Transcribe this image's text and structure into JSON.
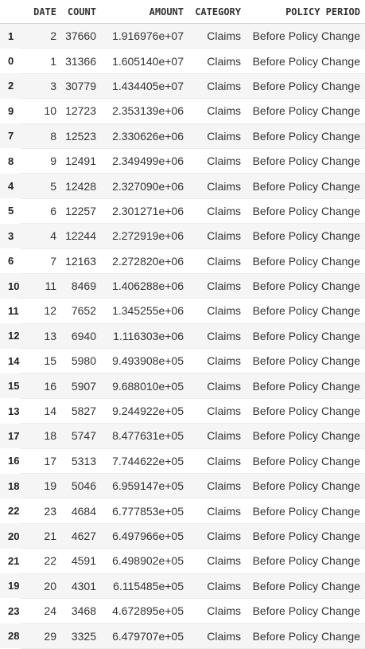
{
  "table": {
    "columns": [
      "",
      "DATE",
      "COUNT",
      "AMOUNT",
      "CATEGORY",
      "POLICY PERIOD"
    ],
    "rows": [
      [
        "1",
        "2",
        "37660",
        "1.916976e+07",
        "Claims",
        "Before Policy Change"
      ],
      [
        "0",
        "1",
        "31366",
        "1.605140e+07",
        "Claims",
        "Before Policy Change"
      ],
      [
        "2",
        "3",
        "30779",
        "1.434405e+07",
        "Claims",
        "Before Policy Change"
      ],
      [
        "9",
        "10",
        "12723",
        "2.353139e+06",
        "Claims",
        "Before Policy Change"
      ],
      [
        "7",
        "8",
        "12523",
        "2.330626e+06",
        "Claims",
        "Before Policy Change"
      ],
      [
        "8",
        "9",
        "12491",
        "2.349499e+06",
        "Claims",
        "Before Policy Change"
      ],
      [
        "4",
        "5",
        "12428",
        "2.327090e+06",
        "Claims",
        "Before Policy Change"
      ],
      [
        "5",
        "6",
        "12257",
        "2.301271e+06",
        "Claims",
        "Before Policy Change"
      ],
      [
        "3",
        "4",
        "12244",
        "2.272919e+06",
        "Claims",
        "Before Policy Change"
      ],
      [
        "6",
        "7",
        "12163",
        "2.272820e+06",
        "Claims",
        "Before Policy Change"
      ],
      [
        "10",
        "11",
        "8469",
        "1.406288e+06",
        "Claims",
        "Before Policy Change"
      ],
      [
        "11",
        "12",
        "7652",
        "1.345255e+06",
        "Claims",
        "Before Policy Change"
      ],
      [
        "12",
        "13",
        "6940",
        "1.116303e+06",
        "Claims",
        "Before Policy Change"
      ],
      [
        "14",
        "15",
        "5980",
        "9.493908e+05",
        "Claims",
        "Before Policy Change"
      ],
      [
        "15",
        "16",
        "5907",
        "9.688010e+05",
        "Claims",
        "Before Policy Change"
      ],
      [
        "13",
        "14",
        "5827",
        "9.244922e+05",
        "Claims",
        "Before Policy Change"
      ],
      [
        "17",
        "18",
        "5747",
        "8.477631e+05",
        "Claims",
        "Before Policy Change"
      ],
      [
        "16",
        "17",
        "5313",
        "7.744622e+05",
        "Claims",
        "Before Policy Change"
      ],
      [
        "18",
        "19",
        "5046",
        "6.959147e+05",
        "Claims",
        "Before Policy Change"
      ],
      [
        "22",
        "23",
        "4684",
        "6.777853e+05",
        "Claims",
        "Before Policy Change"
      ],
      [
        "20",
        "21",
        "4627",
        "6.497966e+05",
        "Claims",
        "Before Policy Change"
      ],
      [
        "21",
        "22",
        "4591",
        "6.498902e+05",
        "Claims",
        "Before Policy Change"
      ],
      [
        "19",
        "20",
        "4301",
        "6.115485e+05",
        "Claims",
        "Before Policy Change"
      ],
      [
        "23",
        "24",
        "3468",
        "4.672895e+05",
        "Claims",
        "Before Policy Change"
      ],
      [
        "28",
        "29",
        "3325",
        "6.479707e+05",
        "Claims",
        "Before Policy Change"
      ]
    ]
  },
  "colors": {
    "stripe": "#f5f5f5",
    "border": "#d8d8d8",
    "text": "#333333"
  }
}
